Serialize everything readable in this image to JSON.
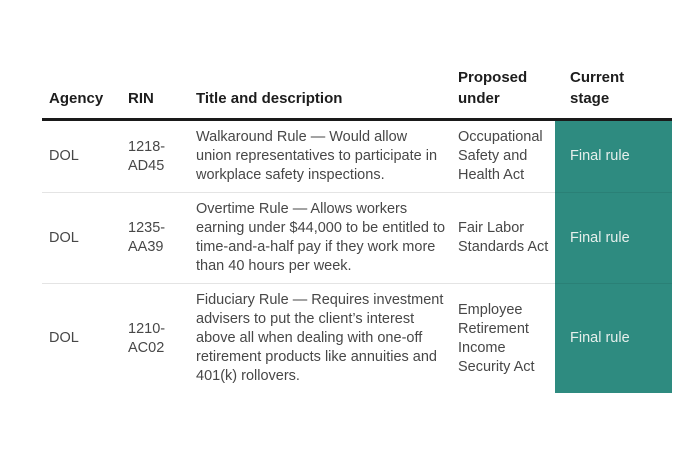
{
  "table": {
    "headers": {
      "agency": "Agency",
      "rin": "RIN",
      "title": "Title and description",
      "proposed_under": "Proposed under",
      "current_stage": "Current stage"
    },
    "rows": [
      {
        "agency": "DOL",
        "rin": "1218-AD45",
        "title": "Walkaround Rule — Would allow union representatives to participate in workplace safety inspections.",
        "proposed_under": "Occupational Safety and Health Act",
        "current_stage": "Final rule"
      },
      {
        "agency": "DOL",
        "rin": "1235-AA39",
        "title": "Overtime Rule — Allows workers earning under $44,000 to be entitled to time-and-a-half pay if they work more than 40 hours per week.",
        "proposed_under": "Fair Labor Standards Act",
        "current_stage": "Final rule"
      },
      {
        "agency": "DOL",
        "rin": "1210-AC02",
        "title": "Fiduciary Rule — Requires investment advisers to put the client’s interest above all when dealing with one-off retirement products like annuities and 401(k) rollovers.",
        "proposed_under": "Employee Retirement Income Security Act",
        "current_stage": "Final rule"
      }
    ],
    "colors": {
      "stage_bg": "#2e8b80",
      "stage_text": "#e6efec",
      "header_text": "#1d1d1d",
      "body_text": "#474747",
      "header_rule": "#1a1a1a",
      "row_divider": "#e4e4e4"
    }
  }
}
